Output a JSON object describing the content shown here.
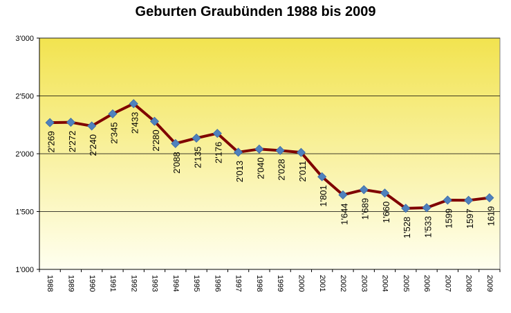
{
  "chart_data": {
    "type": "line",
    "title": "Geburten Graubünden 1988 bis 2009",
    "xlabel": "",
    "ylabel": "",
    "ylim": [
      1000,
      3000
    ],
    "y_ticks": [
      "1'000",
      "1'500",
      "2'000",
      "2'500",
      "3'000"
    ],
    "grid": "horizontal",
    "legend": "none",
    "categories": [
      "1988",
      "1989",
      "1990",
      "1991",
      "1992",
      "1993",
      "1994",
      "1995",
      "1996",
      "1997",
      "1998",
      "1999",
      "2000",
      "2001",
      "2002",
      "2003",
      "2004",
      "2005",
      "2006",
      "2007",
      "2008",
      "2009"
    ],
    "values": [
      2269,
      2272,
      2240,
      2345,
      2433,
      2280,
      2088,
      2135,
      2176,
      2013,
      2040,
      2028,
      2011,
      1801,
      1644,
      1689,
      1660,
      1528,
      1533,
      1599,
      1597,
      1619
    ],
    "data_labels": [
      "2'269",
      "2'272",
      "2'240",
      "2'345",
      "2'433",
      "2'280",
      "2'088",
      "2'135",
      "2'176",
      "2'013",
      "2'040",
      "2'028",
      "2'011",
      "1'801",
      "1'644",
      "1'689",
      "1'660",
      "1'528",
      "1'533",
      "1599",
      "1597",
      "1619"
    ],
    "colors": {
      "line": "#7f0000",
      "marker": "#4f81bd",
      "plot_bg_top": "#f2e34f",
      "plot_bg_bottom": "#fffff0",
      "grid": "#000000"
    }
  }
}
